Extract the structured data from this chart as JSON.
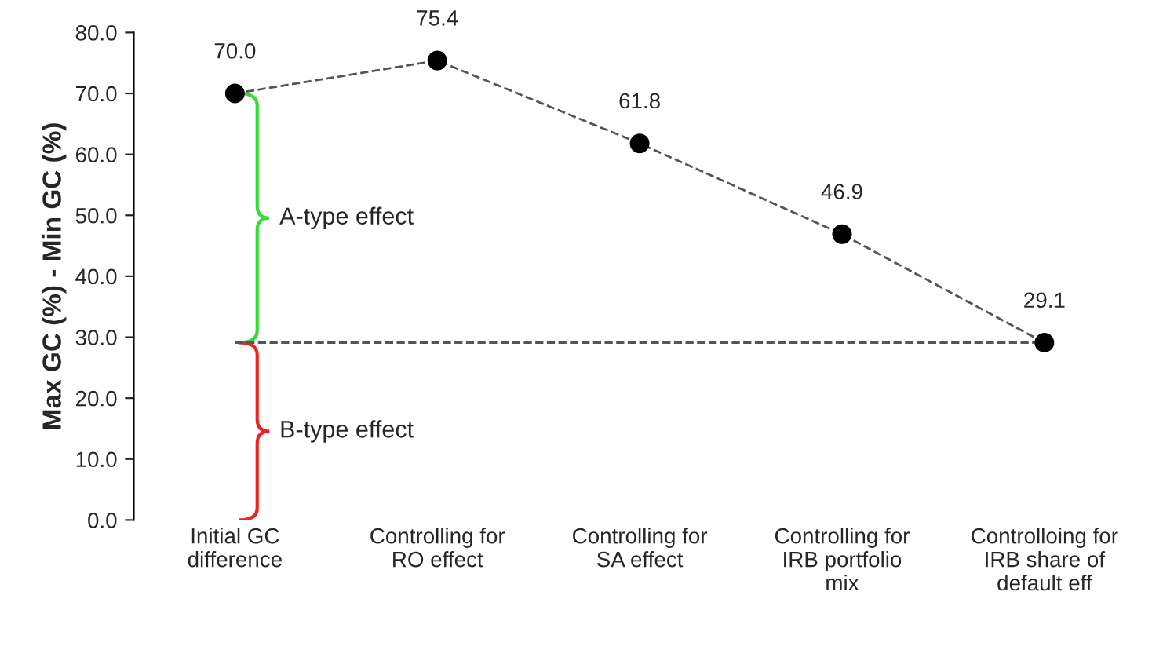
{
  "chart_data": {
    "type": "line",
    "ylabel": "Max GC (%) - Min GC (%)",
    "categories": [
      "Initial GC\ndifference",
      "Controlling for\nRO effect",
      "Controlling for\nSA effect",
      "Controlling for\nIRB portfolio\nmix",
      "Controlloing for\nIRB share of\ndefault eff"
    ],
    "series": [
      {
        "color": "#000000",
        "values": [
          70.0,
          75.4,
          61.8,
          46.9,
          29.1
        ],
        "value_labels": [
          "70.0",
          "75.4",
          "61.8",
          "46.9",
          "29.1"
        ]
      }
    ],
    "ylim": [
      0,
      80
    ],
    "yticks": [
      {
        "value": 0,
        "label": "0.0"
      },
      {
        "value": 10,
        "label": "10.0"
      },
      {
        "value": 20,
        "label": "20.0"
      },
      {
        "value": 30,
        "label": "30.0"
      },
      {
        "value": 40,
        "label": "40.0"
      },
      {
        "value": 50,
        "label": "50.0"
      },
      {
        "value": 60,
        "label": "60.0"
      },
      {
        "value": 70,
        "label": "70.0"
      },
      {
        "value": 80,
        "label": "80.0"
      }
    ],
    "marker": "circle",
    "line_style": "dashed",
    "grid": false,
    "legend": false,
    "ref_lines": [
      {
        "axis": "y",
        "value": 29.1,
        "color": "#555555",
        "line_style": "dashed"
      }
    ],
    "annotations": [
      "A-type effect",
      "B-type effect"
    ]
  }
}
